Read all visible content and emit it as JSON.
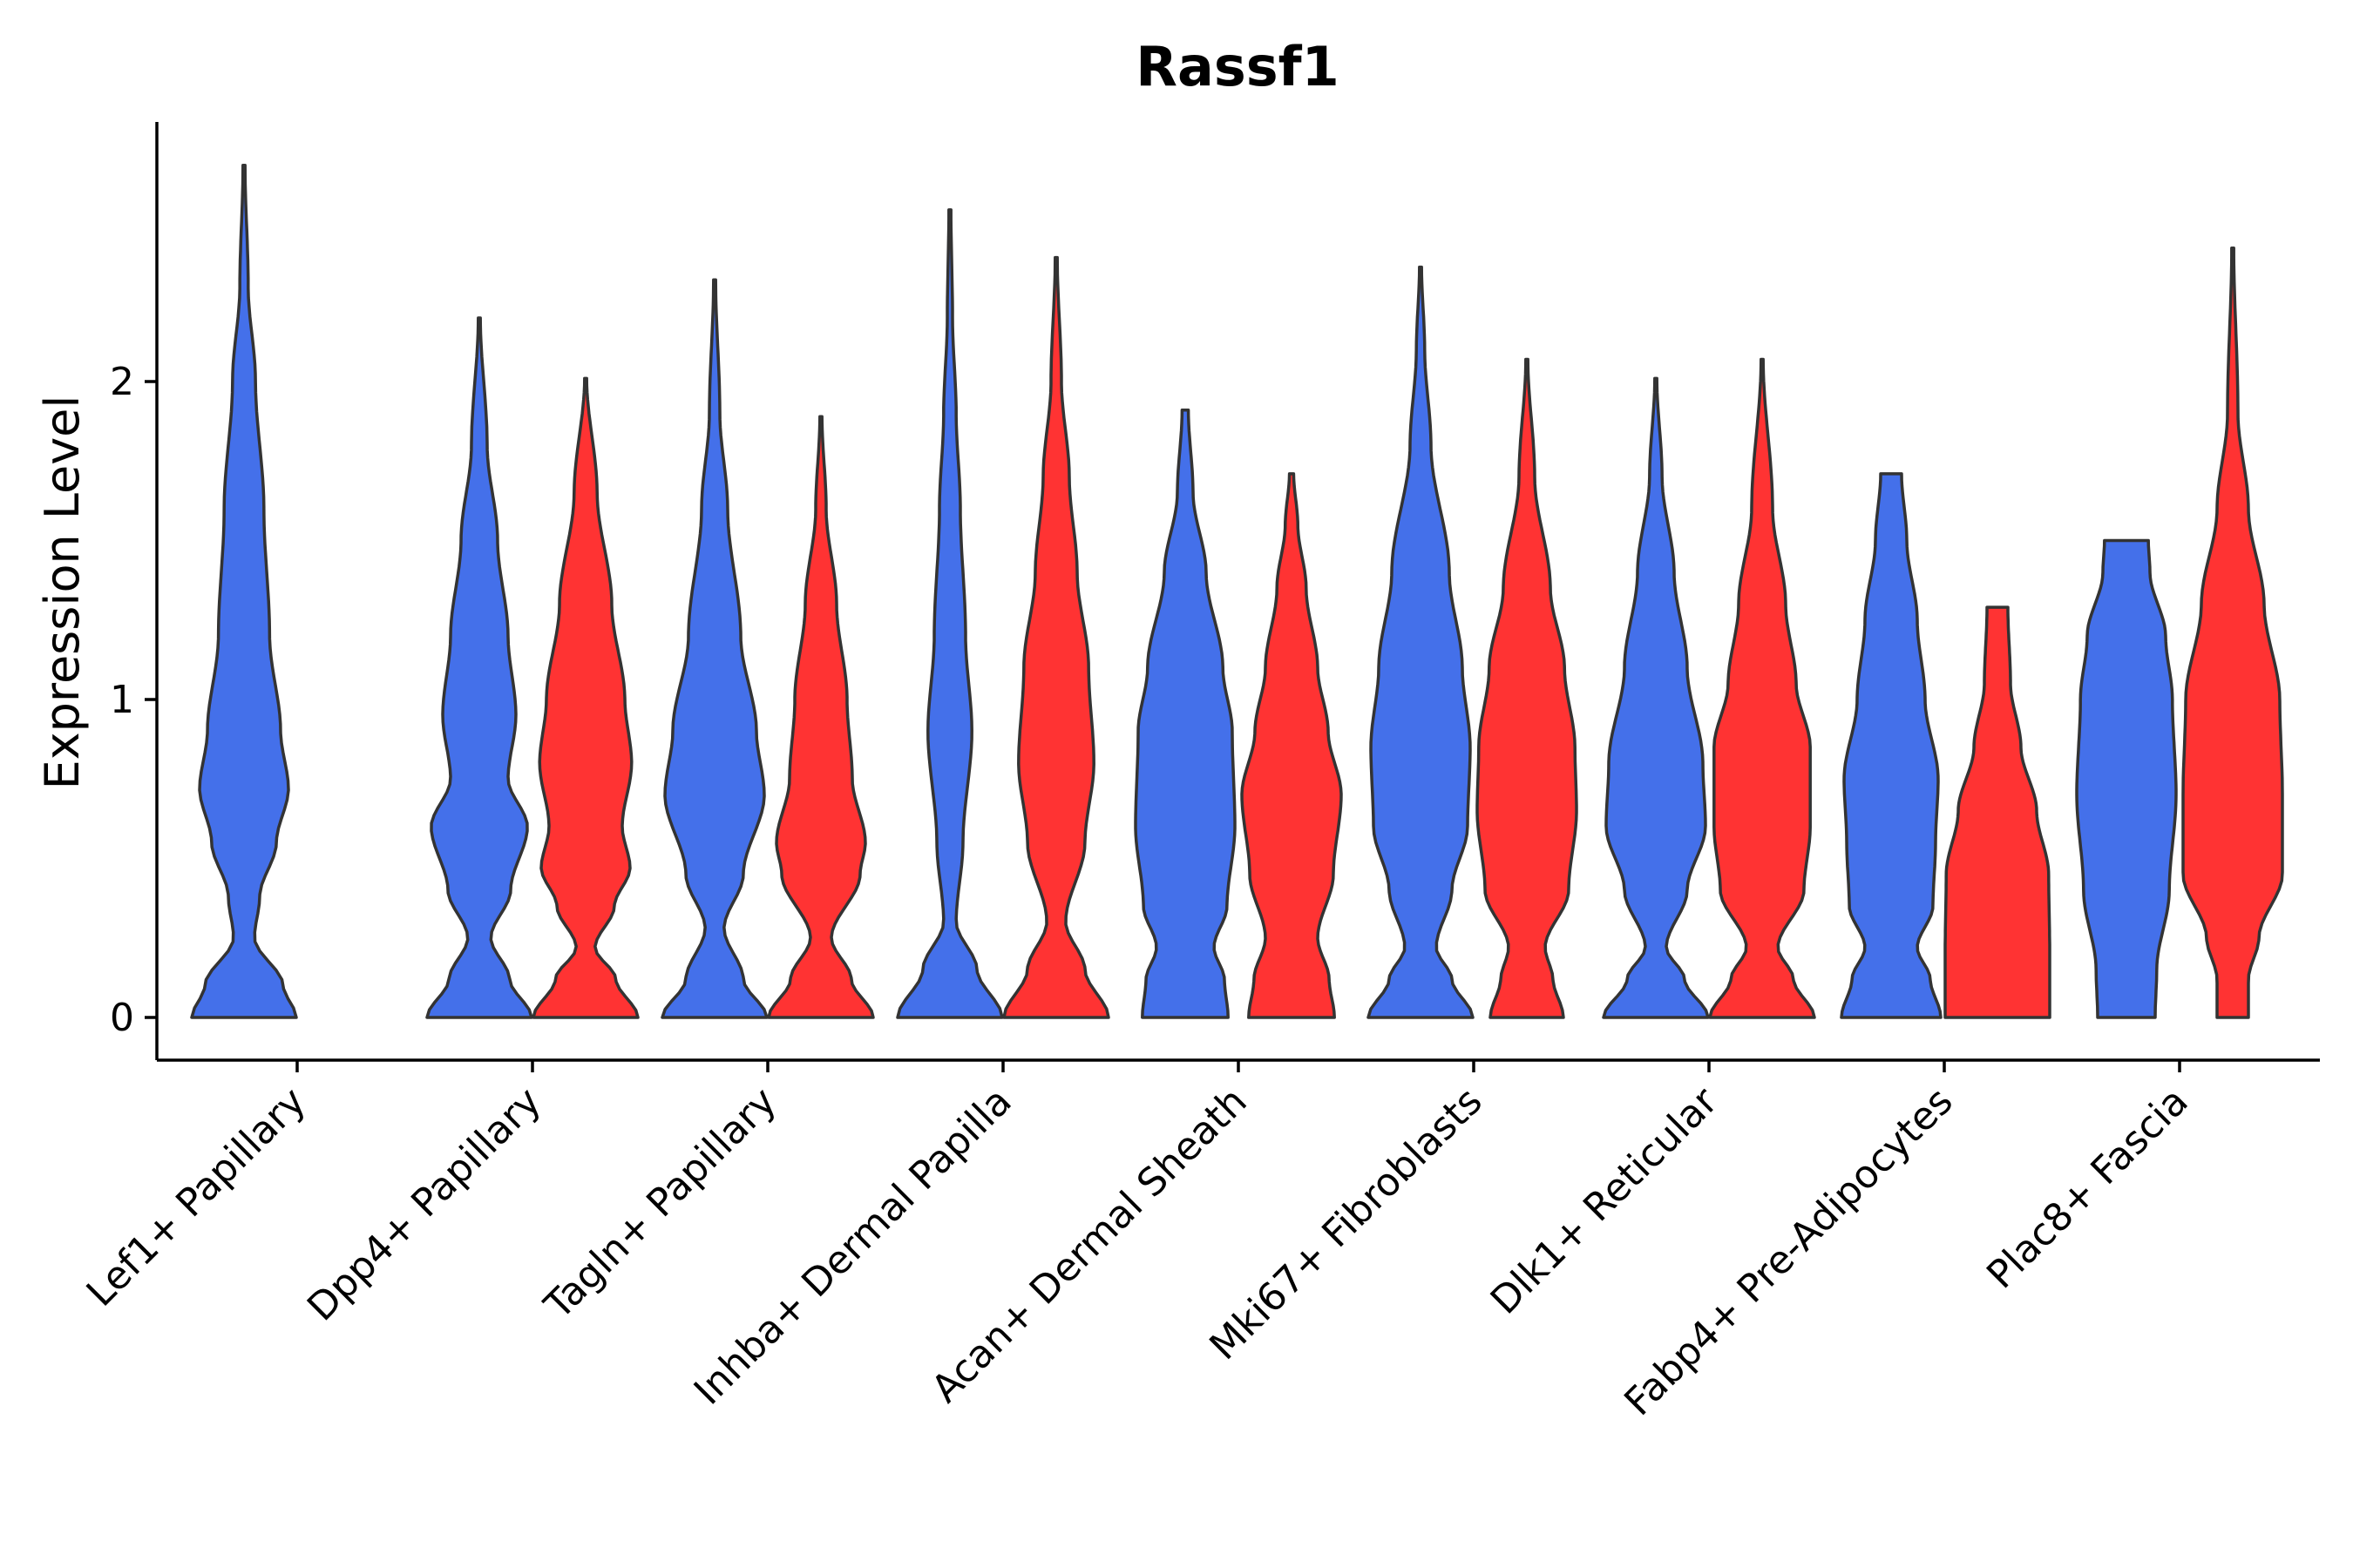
{
  "chart_data": {
    "type": "violin",
    "title": "Rassf1",
    "xlabel": "",
    "ylabel": "Expression Level",
    "ylim": [
      -0.13,
      2.8
    ],
    "yticks": [
      0,
      1,
      2
    ],
    "ytick_labels": [
      "0",
      "1",
      "2"
    ],
    "grid": false,
    "legend": "none",
    "colors": {
      "blue": "#4470EA",
      "red": "#FF3333",
      "outline": "#333333"
    },
    "categories": [
      "Lef1+ Papillary",
      "Dpp4+ Papillary",
      "Tagln+ Papillary",
      "Inhba+ Dermal Papilla",
      "Acan+ Dermal Sheath",
      "Mki67+ Fibroblasts",
      "Dlk1+ Reticular",
      "Fabp4+ Pre-Adipocytes",
      "Plac8+ Fascia"
    ],
    "violins": [
      {
        "category": 0,
        "group": "blue",
        "max": 2.68,
        "profile": [
          [
            0,
            1.0
          ],
          [
            0.1,
            0.75
          ],
          [
            0.25,
            0.2
          ],
          [
            0.38,
            0.3
          ],
          [
            0.55,
            0.62
          ],
          [
            0.72,
            0.85
          ],
          [
            0.9,
            0.7
          ],
          [
            1.2,
            0.49
          ],
          [
            1.6,
            0.38
          ],
          [
            2.0,
            0.22
          ],
          [
            2.3,
            0.08
          ],
          [
            2.68,
            0.02
          ]
        ]
      },
      {
        "category": 1,
        "group": "blue",
        "max": 2.2,
        "profile": [
          [
            0,
            1.0
          ],
          [
            0.12,
            0.58
          ],
          [
            0.25,
            0.22
          ],
          [
            0.4,
            0.6
          ],
          [
            0.6,
            0.92
          ],
          [
            0.75,
            0.55
          ],
          [
            0.95,
            0.7
          ],
          [
            1.2,
            0.55
          ],
          [
            1.5,
            0.35
          ],
          [
            1.8,
            0.15
          ],
          [
            2.2,
            0.02
          ]
        ]
      },
      {
        "category": 1,
        "group": "red",
        "max": 2.01,
        "profile": [
          [
            0,
            1.0
          ],
          [
            0.12,
            0.58
          ],
          [
            0.22,
            0.18
          ],
          [
            0.35,
            0.55
          ],
          [
            0.47,
            0.85
          ],
          [
            0.6,
            0.7
          ],
          [
            0.8,
            0.88
          ],
          [
            1.0,
            0.75
          ],
          [
            1.3,
            0.5
          ],
          [
            1.65,
            0.22
          ],
          [
            2.01,
            0.02
          ]
        ]
      },
      {
        "category": 2,
        "group": "blue",
        "max": 2.32,
        "profile": [
          [
            0,
            1.0
          ],
          [
            0.12,
            0.55
          ],
          [
            0.28,
            0.18
          ],
          [
            0.45,
            0.55
          ],
          [
            0.7,
            0.95
          ],
          [
            0.9,
            0.8
          ],
          [
            1.2,
            0.5
          ],
          [
            1.6,
            0.25
          ],
          [
            1.9,
            0.1
          ],
          [
            2.32,
            0.02
          ]
        ]
      },
      {
        "category": 2,
        "group": "red",
        "max": 1.89,
        "profile": [
          [
            0,
            1.0
          ],
          [
            0.12,
            0.58
          ],
          [
            0.25,
            0.2
          ],
          [
            0.45,
            0.75
          ],
          [
            0.55,
            0.85
          ],
          [
            0.75,
            0.6
          ],
          [
            1.0,
            0.5
          ],
          [
            1.3,
            0.3
          ],
          [
            1.6,
            0.1
          ],
          [
            1.89,
            0.02
          ]
        ]
      },
      {
        "category": 3,
        "group": "blue",
        "max": 2.54,
        "profile": [
          [
            0,
            1.0
          ],
          [
            0.15,
            0.52
          ],
          [
            0.3,
            0.12
          ],
          [
            0.55,
            0.25
          ],
          [
            0.9,
            0.42
          ],
          [
            1.2,
            0.3
          ],
          [
            1.6,
            0.2
          ],
          [
            1.9,
            0.12
          ],
          [
            2.2,
            0.05
          ],
          [
            2.54,
            0.02
          ]
        ]
      },
      {
        "category": 3,
        "group": "red",
        "max": 2.39,
        "profile": [
          [
            0,
            1.0
          ],
          [
            0.15,
            0.55
          ],
          [
            0.3,
            0.18
          ],
          [
            0.55,
            0.55
          ],
          [
            0.8,
            0.72
          ],
          [
            1.1,
            0.62
          ],
          [
            1.4,
            0.4
          ],
          [
            1.7,
            0.25
          ],
          [
            2.0,
            0.1
          ],
          [
            2.39,
            0.02
          ]
        ]
      },
      {
        "category": 4,
        "group": "blue",
        "max": 1.91,
        "profile": [
          [
            0,
            0.82
          ],
          [
            0.12,
            0.75
          ],
          [
            0.22,
            0.55
          ],
          [
            0.35,
            0.8
          ],
          [
            0.6,
            0.95
          ],
          [
            0.9,
            0.9
          ],
          [
            1.1,
            0.72
          ],
          [
            1.4,
            0.4
          ],
          [
            1.65,
            0.15
          ],
          [
            1.91,
            0.06
          ]
        ]
      },
      {
        "category": 4,
        "group": "red",
        "max": 1.71,
        "profile": [
          [
            0,
            0.82
          ],
          [
            0.12,
            0.72
          ],
          [
            0.25,
            0.5
          ],
          [
            0.45,
            0.8
          ],
          [
            0.7,
            0.95
          ],
          [
            0.9,
            0.7
          ],
          [
            1.1,
            0.5
          ],
          [
            1.35,
            0.28
          ],
          [
            1.55,
            0.12
          ],
          [
            1.71,
            0.04
          ]
        ]
      },
      {
        "category": 5,
        "group": "blue",
        "max": 2.36,
        "profile": [
          [
            0,
            1.0
          ],
          [
            0.12,
            0.6
          ],
          [
            0.22,
            0.3
          ],
          [
            0.4,
            0.6
          ],
          [
            0.6,
            0.9
          ],
          [
            0.85,
            0.95
          ],
          [
            1.1,
            0.8
          ],
          [
            1.4,
            0.55
          ],
          [
            1.8,
            0.2
          ],
          [
            2.1,
            0.08
          ],
          [
            2.36,
            0.02
          ]
        ]
      },
      {
        "category": 5,
        "group": "red",
        "max": 2.07,
        "profile": [
          [
            0,
            0.7
          ],
          [
            0.12,
            0.5
          ],
          [
            0.22,
            0.35
          ],
          [
            0.4,
            0.8
          ],
          [
            0.65,
            0.95
          ],
          [
            0.85,
            0.92
          ],
          [
            1.1,
            0.72
          ],
          [
            1.35,
            0.45
          ],
          [
            1.7,
            0.15
          ],
          [
            2.07,
            0.02
          ]
        ]
      },
      {
        "category": 6,
        "group": "blue",
        "max": 2.01,
        "profile": [
          [
            0,
            1.0
          ],
          [
            0.12,
            0.55
          ],
          [
            0.22,
            0.2
          ],
          [
            0.4,
            0.6
          ],
          [
            0.6,
            0.95
          ],
          [
            0.8,
            0.9
          ],
          [
            1.1,
            0.6
          ],
          [
            1.4,
            0.35
          ],
          [
            1.7,
            0.12
          ],
          [
            2.01,
            0.02
          ]
        ]
      },
      {
        "category": 6,
        "group": "red",
        "max": 2.07,
        "profile": [
          [
            0,
            1.0
          ],
          [
            0.12,
            0.6
          ],
          [
            0.22,
            0.3
          ],
          [
            0.4,
            0.8
          ],
          [
            0.6,
            0.92
          ],
          [
            0.85,
            0.92
          ],
          [
            1.05,
            0.65
          ],
          [
            1.3,
            0.45
          ],
          [
            1.6,
            0.2
          ],
          [
            2.07,
            0.02
          ]
        ]
      },
      {
        "category": 7,
        "group": "blue",
        "max": 1.71,
        "profile": [
          [
            0,
            0.95
          ],
          [
            0.12,
            0.75
          ],
          [
            0.22,
            0.5
          ],
          [
            0.35,
            0.8
          ],
          [
            0.55,
            0.85
          ],
          [
            0.75,
            0.9
          ],
          [
            1.0,
            0.65
          ],
          [
            1.25,
            0.5
          ],
          [
            1.5,
            0.3
          ],
          [
            1.71,
            0.2
          ]
        ]
      },
      {
        "category": 7,
        "group": "red",
        "max": 1.29,
        "profile": [
          [
            0,
            1.0
          ],
          [
            0.2,
            1.0
          ],
          [
            0.45,
            0.98
          ],
          [
            0.65,
            0.75
          ],
          [
            0.85,
            0.45
          ],
          [
            1.05,
            0.25
          ],
          [
            1.29,
            0.2
          ]
        ]
      },
      {
        "category": 8,
        "group": "blue",
        "max": 1.5,
        "profile": [
          [
            0,
            0.55
          ],
          [
            0.15,
            0.58
          ],
          [
            0.4,
            0.82
          ],
          [
            0.7,
            0.95
          ],
          [
            1.0,
            0.88
          ],
          [
            1.2,
            0.75
          ],
          [
            1.4,
            0.45
          ],
          [
            1.5,
            0.42
          ]
        ]
      },
      {
        "category": 8,
        "group": "red",
        "max": 2.42,
        "profile": [
          [
            0,
            0.3
          ],
          [
            0.12,
            0.3
          ],
          [
            0.25,
            0.5
          ],
          [
            0.45,
            0.95
          ],
          [
            0.7,
            0.95
          ],
          [
            1.0,
            0.9
          ],
          [
            1.3,
            0.6
          ],
          [
            1.6,
            0.3
          ],
          [
            1.9,
            0.1
          ],
          [
            2.42,
            0.02
          ]
        ]
      }
    ]
  }
}
